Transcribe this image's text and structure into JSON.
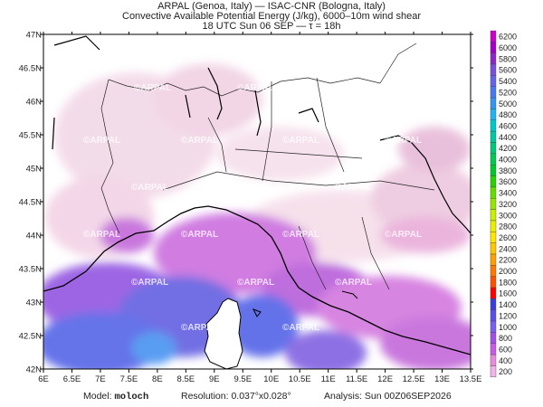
{
  "header": {
    "line1": "ARPAL (Genoa, Italy)  —  ISAC-CNR (Bologna, Italy)",
    "line2": "Convective Available Potential Energy (J/kg), 6000–10m wind shear",
    "line3": "18 UTC Sun 06 SEP  —  τ = 18h"
  },
  "axes": {
    "lon_labels": [
      "6E",
      "6.5E",
      "7E",
      "7.5E",
      "8E",
      "8.5E",
      "9E",
      "9.5E",
      "10E",
      "10.5E",
      "11E",
      "11.5E",
      "12E",
      "12.5E",
      "13E",
      "13.5E"
    ],
    "lat_labels": [
      "47N",
      "46.5N",
      "46N",
      "45.5N",
      "45N",
      "44.5N",
      "44N",
      "43.5N",
      "43N",
      "42.5N",
      "42N"
    ],
    "lon_range": [
      6,
      13.5
    ],
    "lat_range": [
      42,
      47
    ]
  },
  "colorbar": {
    "levels": [
      "6200",
      "6000",
      "5800",
      "5600",
      "5400",
      "5200",
      "5000",
      "4800",
      "4600",
      "4400",
      "4200",
      "4000",
      "3800",
      "3600",
      "3400",
      "3200",
      "3000",
      "2800",
      "2600",
      "2400",
      "2200",
      "2000",
      "1800",
      "1600",
      "1400",
      "1200",
      "1000",
      "800",
      "600",
      "400",
      "200"
    ],
    "colors": [
      "#c800c8",
      "#a000c8",
      "#8c28c8",
      "#7850dc",
      "#6464e6",
      "#4878f0",
      "#3296f0",
      "#1eb4f0",
      "#00c8c8",
      "#00c8a0",
      "#00c878",
      "#00c850",
      "#00c828",
      "#28d200",
      "#64dc00",
      "#96e600",
      "#c8f000",
      "#e6f000",
      "#ffe600",
      "#ffc800",
      "#ffa000",
      "#ff7800",
      "#ff5000",
      "#ff0000",
      "#3c3cdc",
      "#5a50e6",
      "#7860f0",
      "#a050e6",
      "#c85ae6",
      "#e68cdc",
      "#f0b4e6"
    ]
  },
  "watermark": "©ARPAL",
  "footer": {
    "model_label": "Model:",
    "model_value": "moloch",
    "resolution": "Resolution: 0.037°x0.028°",
    "analysis": "Analysis: Sun 00Z06SEP2026"
  }
}
